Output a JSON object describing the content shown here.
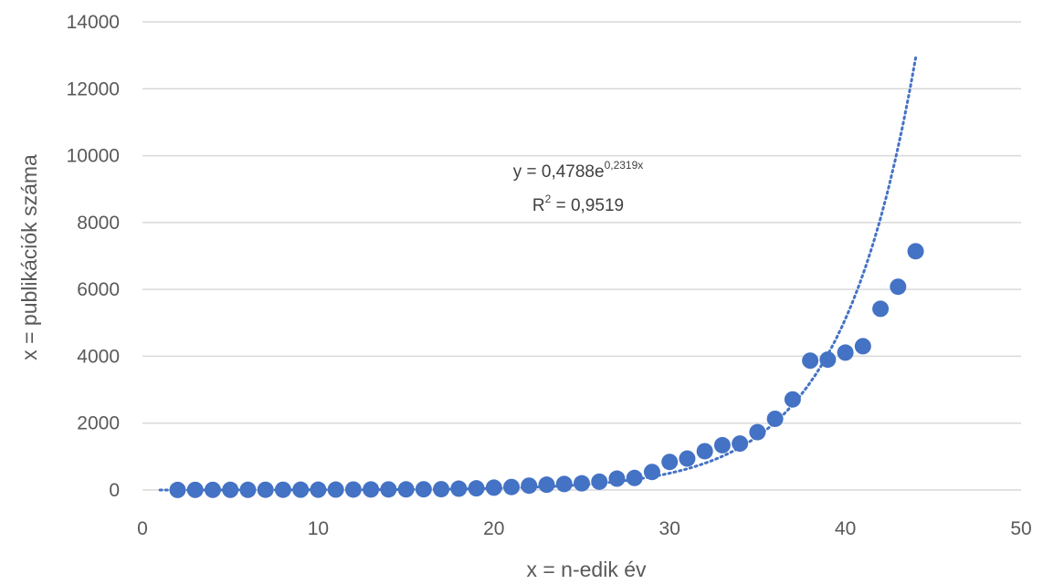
{
  "chart_data": {
    "type": "scatter",
    "title": "",
    "xlabel": "x = n-edik év",
    "ylabel": "x = publikációk száma",
    "xlim": [
      0,
      50
    ],
    "ylim": [
      0,
      14000
    ],
    "x_ticks": [
      "0",
      "10",
      "20",
      "30",
      "40",
      "50"
    ],
    "y_ticks": [
      "0",
      "2000",
      "4000",
      "6000",
      "8000",
      "10000",
      "12000",
      "14000"
    ],
    "grid": "horizontal",
    "legend": "none",
    "colors": {
      "marker": "#4472C4",
      "trendline": "#4472C4",
      "grid": "#D9D9D9",
      "text": "#595959"
    },
    "series": [
      {
        "x": [
          2,
          3,
          4,
          5,
          6,
          7,
          8,
          9,
          10,
          11,
          12,
          13,
          14,
          15,
          16,
          17,
          18,
          19,
          20,
          21,
          22,
          23,
          24,
          25,
          26,
          27,
          28,
          29,
          30,
          31,
          32,
          33,
          34,
          35,
          36,
          37,
          38,
          39,
          40,
          41,
          42,
          43,
          44
        ],
        "y": [
          3,
          5,
          5,
          6,
          6,
          7,
          8,
          10,
          10,
          12,
          14,
          16,
          18,
          20,
          22,
          25,
          40,
          50,
          70,
          90,
          130,
          160,
          180,
          200,
          250,
          340,
          360,
          540,
          840,
          940,
          1160,
          1340,
          1390,
          1730,
          2130,
          2710,
          3870,
          3900,
          4110,
          4300,
          5420,
          6080,
          7140
        ]
      }
    ],
    "trendline": {
      "type": "exponential",
      "a": 0.4788,
      "b": 0.2319,
      "x_range": [
        1,
        44
      ],
      "equation_prefix": "y = 0,4788e",
      "equation_exponent": "0,2319x",
      "r2_prefix": "R",
      "r2_sup": "2",
      "r2_suffix": " = 0,9519"
    }
  }
}
